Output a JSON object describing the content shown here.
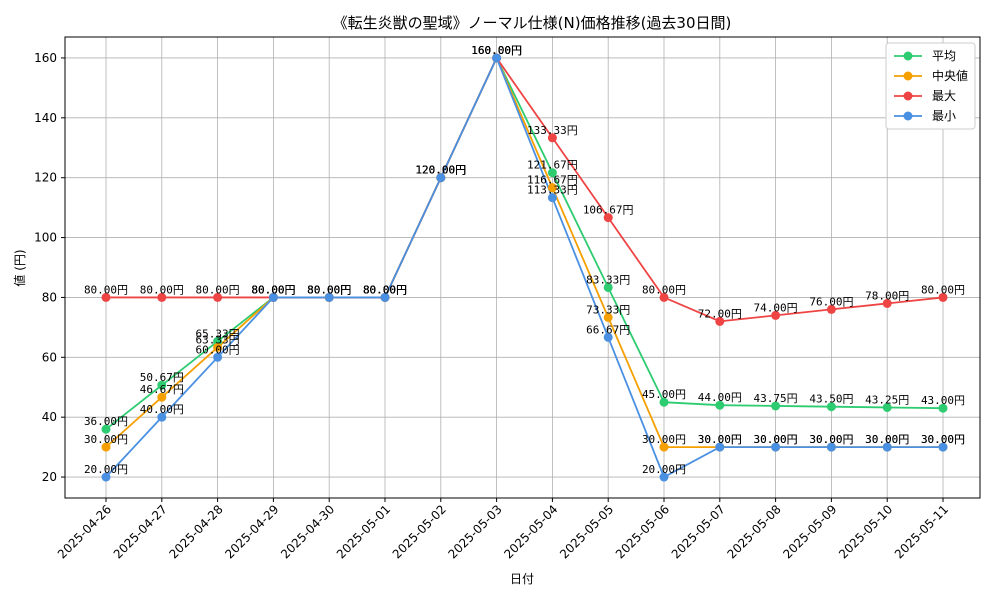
{
  "chart_data": {
    "type": "line",
    "title": "《転生炎獣の聖域》ノーマル仕様(N)価格推移(過去30日間)",
    "xlabel": "日付",
    "ylabel": "値 (円)",
    "ylim": [
      13,
      167
    ],
    "yticks": [
      20,
      40,
      60,
      80,
      100,
      120,
      140,
      160
    ],
    "grid": true,
    "legend_position": "top-right",
    "categories": [
      "2025-04-26",
      "2025-04-27",
      "2025-04-28",
      "2025-04-29",
      "2025-04-30",
      "2025-05-01",
      "2025-05-02",
      "2025-05-03",
      "2025-05-04",
      "2025-05-05",
      "2025-05-06",
      "2025-05-07",
      "2025-05-08",
      "2025-05-09",
      "2025-05-10",
      "2025-05-11"
    ],
    "series": [
      {
        "name": "平均",
        "color": "#2ecc71",
        "values": [
          36,
          50.67,
          65.33,
          80,
          80,
          80,
          120,
          160,
          121.67,
          83.33,
          45,
          44,
          43.75,
          43.5,
          43.25,
          43
        ],
        "labels": [
          "36.00円",
          "50.67円",
          "65.33円",
          "80.00円",
          "80.00円",
          "80.00円",
          "120.00円",
          "160.00円",
          "121.67円",
          "83.33円",
          "45.00円",
          "44.00円",
          "43.75円",
          "43.50円",
          "43.25円",
          "43.00円"
        ]
      },
      {
        "name": "中央値",
        "color": "#f5a000",
        "values": [
          30,
          46.67,
          63.33,
          80,
          80,
          80,
          120,
          160,
          116.67,
          73.33,
          30,
          30,
          30,
          30,
          30,
          30
        ],
        "labels": [
          "30.00円",
          "46.67円",
          "63.33円",
          "80.00円",
          "80.00円",
          "80.00円",
          "120.00円",
          "160.00円",
          "116.67円",
          "73.33円",
          "30.00円",
          "30.00円",
          "30.00円",
          "30.00円",
          "30.00円",
          "30.00円"
        ]
      },
      {
        "name": "最大",
        "color": "#ef4444",
        "values": [
          80,
          80,
          80,
          80,
          80,
          80,
          120,
          160,
          133.33,
          106.67,
          80,
          72,
          74,
          76,
          78,
          80
        ],
        "labels": [
          "80.00円",
          "80.00円",
          "80.00円",
          "80.00円",
          "80.00円",
          "80.00円",
          "120.00円",
          "160.00円",
          "133.33円",
          "106.67円",
          "80.00円",
          "72.00円",
          "74.00円",
          "76.00円",
          "78.00円",
          "80.00円"
        ]
      },
      {
        "name": "最小",
        "color": "#4a90e2",
        "values": [
          20,
          40,
          60,
          80,
          80,
          80,
          120,
          160,
          113.33,
          66.67,
          20,
          30,
          30,
          30,
          30,
          30
        ],
        "labels": [
          "20.00円",
          "40.00円",
          "60.00円",
          "80.00円",
          "80.00円",
          "80.00円",
          "120.00円",
          "160.00円",
          "113.33円",
          "66.67円",
          "20.00円",
          "30.00円",
          "30.00円",
          "30.00円",
          "30.00円",
          "30.00円"
        ]
      }
    ]
  }
}
